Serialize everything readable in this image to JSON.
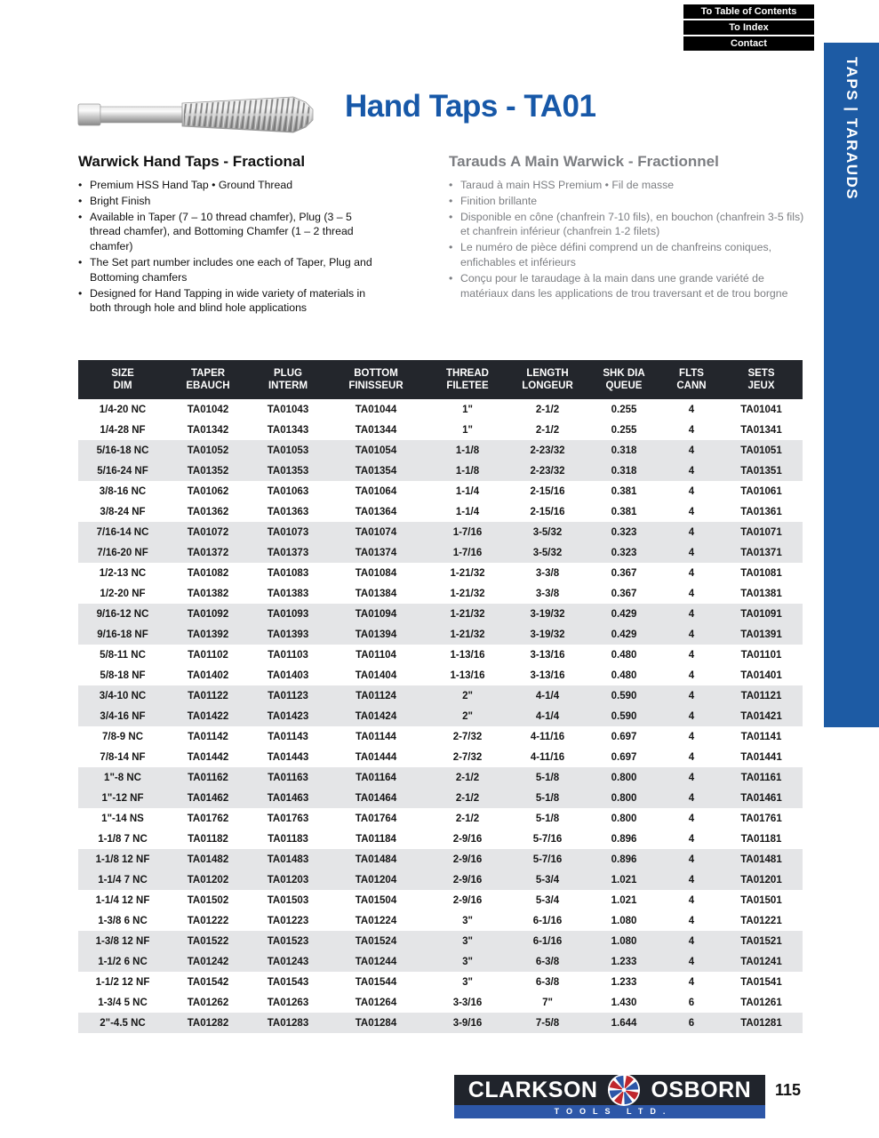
{
  "nav": {
    "buttons": [
      "To Table of Contents",
      "To Index",
      "Contact"
    ]
  },
  "sidebar": {
    "label": "TAPS | TARAUDS"
  },
  "header": {
    "title": "Hand Taps - TA01"
  },
  "intro": {
    "english": {
      "heading": "Warwick Hand Taps - Fractional",
      "bullets": [
        "Premium HSS Hand Tap  •  Ground Thread",
        "Bright Finish",
        "Available in Taper (7 – 10 thread chamfer), Plug (3 – 5 thread chamfer), and Bottoming Chamfer (1 – 2 thread chamfer)",
        "The Set part number includes one each of Taper, Plug and Bottoming chamfers",
        "Designed for Hand Tapping in wide variety of materials in both through hole and blind hole applications"
      ]
    },
    "french": {
      "heading": "Tarauds A Main Warwick - Fractionnel",
      "bullets": [
        "Taraud à main HSS Premium  •  Fil de masse",
        "Finition brillante",
        "Disponible en cône (chanfrein 7-10 fils), en bouchon (chanfrein 3-5 fils) et chanfrein inférieur (chanfrein 1-2 filets)",
        "Le numéro de pièce défini comprend un de chanfreins coniques, enfichables et inférieurs",
        "Conçu pour le taraudage à la main dans une grande variété de matériaux dans les applications de trou traversant et de trou borgne"
      ]
    }
  },
  "table": {
    "headers": [
      {
        "line1": "SIZE",
        "line2": "DIM"
      },
      {
        "line1": "TAPER",
        "line2": "EBAUCH"
      },
      {
        "line1": "PLUG",
        "line2": "INTERM"
      },
      {
        "line1": "BOTTOM",
        "line2": "FINISSEUR"
      },
      {
        "line1": "THREAD",
        "line2": "FILETEE"
      },
      {
        "line1": "LENGTH",
        "line2": "LONGEUR"
      },
      {
        "line1": "SHK DIA",
        "line2": "QUEUE"
      },
      {
        "line1": "FLTS",
        "line2": "CANN"
      },
      {
        "line1": "SETS",
        "line2": "JEUX"
      }
    ],
    "rows": [
      [
        "1/4-20 NC",
        "TA01042",
        "TA01043",
        "TA01044",
        "1\"",
        "2-1/2",
        "0.255",
        "4",
        "TA01041"
      ],
      [
        "1/4-28 NF",
        "TA01342",
        "TA01343",
        "TA01344",
        "1\"",
        "2-1/2",
        "0.255",
        "4",
        "TA01341"
      ],
      [
        "5/16-18 NC",
        "TA01052",
        "TA01053",
        "TA01054",
        "1-1/8",
        "2-23/32",
        "0.318",
        "4",
        "TA01051"
      ],
      [
        "5/16-24 NF",
        "TA01352",
        "TA01353",
        "TA01354",
        "1-1/8",
        "2-23/32",
        "0.318",
        "4",
        "TA01351"
      ],
      [
        "3/8-16 NC",
        "TA01062",
        "TA01063",
        "TA01064",
        "1-1/4",
        "2-15/16",
        "0.381",
        "4",
        "TA01061"
      ],
      [
        "3/8-24 NF",
        "TA01362",
        "TA01363",
        "TA01364",
        "1-1/4",
        "2-15/16",
        "0.381",
        "4",
        "TA01361"
      ],
      [
        "7/16-14 NC",
        "TA01072",
        "TA01073",
        "TA01074",
        "1-7/16",
        "3-5/32",
        "0.323",
        "4",
        "TA01071"
      ],
      [
        "7/16-20 NF",
        "TA01372",
        "TA01373",
        "TA01374",
        "1-7/16",
        "3-5/32",
        "0.323",
        "4",
        "TA01371"
      ],
      [
        "1/2-13 NC",
        "TA01082",
        "TA01083",
        "TA01084",
        "1-21/32",
        "3-3/8",
        "0.367",
        "4",
        "TA01081"
      ],
      [
        "1/2-20 NF",
        "TA01382",
        "TA01383",
        "TA01384",
        "1-21/32",
        "3-3/8",
        "0.367",
        "4",
        "TA01381"
      ],
      [
        "9/16-12 NC",
        "TA01092",
        "TA01093",
        "TA01094",
        "1-21/32",
        "3-19/32",
        "0.429",
        "4",
        "TA01091"
      ],
      [
        "9/16-18 NF",
        "TA01392",
        "TA01393",
        "TA01394",
        "1-21/32",
        "3-19/32",
        "0.429",
        "4",
        "TA01391"
      ],
      [
        "5/8-11 NC",
        "TA01102",
        "TA01103",
        "TA01104",
        "1-13/16",
        "3-13/16",
        "0.480",
        "4",
        "TA01101"
      ],
      [
        "5/8-18 NF",
        "TA01402",
        "TA01403",
        "TA01404",
        "1-13/16",
        "3-13/16",
        "0.480",
        "4",
        "TA01401"
      ],
      [
        "3/4-10 NC",
        "TA01122",
        "TA01123",
        "TA01124",
        "2\"",
        "4-1/4",
        "0.590",
        "4",
        "TA01121"
      ],
      [
        "3/4-16 NF",
        "TA01422",
        "TA01423",
        "TA01424",
        "2\"",
        "4-1/4",
        "0.590",
        "4",
        "TA01421"
      ],
      [
        "7/8-9 NC",
        "TA01142",
        "TA01143",
        "TA01144",
        "2-7/32",
        "4-11/16",
        "0.697",
        "4",
        "TA01141"
      ],
      [
        "7/8-14 NF",
        "TA01442",
        "TA01443",
        "TA01444",
        "2-7/32",
        "4-11/16",
        "0.697",
        "4",
        "TA01441"
      ],
      [
        "1\"-8 NC",
        "TA01162",
        "TA01163",
        "TA01164",
        "2-1/2",
        "5-1/8",
        "0.800",
        "4",
        "TA01161"
      ],
      [
        "1\"-12 NF",
        "TA01462",
        "TA01463",
        "TA01464",
        "2-1/2",
        "5-1/8",
        "0.800",
        "4",
        "TA01461"
      ],
      [
        "1\"-14 NS",
        "TA01762",
        "TA01763",
        "TA01764",
        "2-1/2",
        "5-1/8",
        "0.800",
        "4",
        "TA01761"
      ],
      [
        "1-1/8 7 NC",
        "TA01182",
        "TA01183",
        "TA01184",
        "2-9/16",
        "5-7/16",
        "0.896",
        "4",
        "TA01181"
      ],
      [
        "1-1/8 12 NF",
        "TA01482",
        "TA01483",
        "TA01484",
        "2-9/16",
        "5-7/16",
        "0.896",
        "4",
        "TA01481"
      ],
      [
        "1-1/4 7 NC",
        "TA01202",
        "TA01203",
        "TA01204",
        "2-9/16",
        "5-3/4",
        "1.021",
        "4",
        "TA01201"
      ],
      [
        "1-1/4 12 NF",
        "TA01502",
        "TA01503",
        "TA01504",
        "2-9/16",
        "5-3/4",
        "1.021",
        "4",
        "TA01501"
      ],
      [
        "1-3/8 6 NC",
        "TA01222",
        "TA01223",
        "TA01224",
        "3\"",
        "6-1/16",
        "1.080",
        "4",
        "TA01221"
      ],
      [
        "1-3/8 12 NF",
        "TA01522",
        "TA01523",
        "TA01524",
        "3\"",
        "6-1/16",
        "1.080",
        "4",
        "TA01521"
      ],
      [
        "1-1/2 6 NC",
        "TA01242",
        "TA01243",
        "TA01244",
        "3\"",
        "6-3/8",
        "1.233",
        "4",
        "TA01241"
      ],
      [
        "1-1/2 12 NF",
        "TA01542",
        "TA01543",
        "TA01544",
        "3\"",
        "6-3/8",
        "1.233",
        "4",
        "TA01541"
      ],
      [
        "1-3/4 5 NC",
        "TA01262",
        "TA01263",
        "TA01264",
        "3-3/16",
        "7\"",
        "1.430",
        "6",
        "TA01261"
      ],
      [
        "2\"-4.5 NC",
        "TA01282",
        "TA01283",
        "TA01284",
        "3-9/16",
        "7-5/8",
        "1.644",
        "6",
        "TA01281"
      ]
    ]
  },
  "footer": {
    "brand_left": "CLARKSON",
    "brand_right": "OSBORN",
    "brand_sub": "TOOLS LTD.",
    "page_number": "115"
  },
  "colors": {
    "title_blue": "#1758A8",
    "sidebar_blue": "#1D5BA4",
    "table_header_bg": "#23262C",
    "row_stripe": "#E4E5E7",
    "french_text_gray": "#7C7E82",
    "nav_button_black": "#000000",
    "logo_red": "#C0272D",
    "logo_blue": "#2D57A8"
  }
}
